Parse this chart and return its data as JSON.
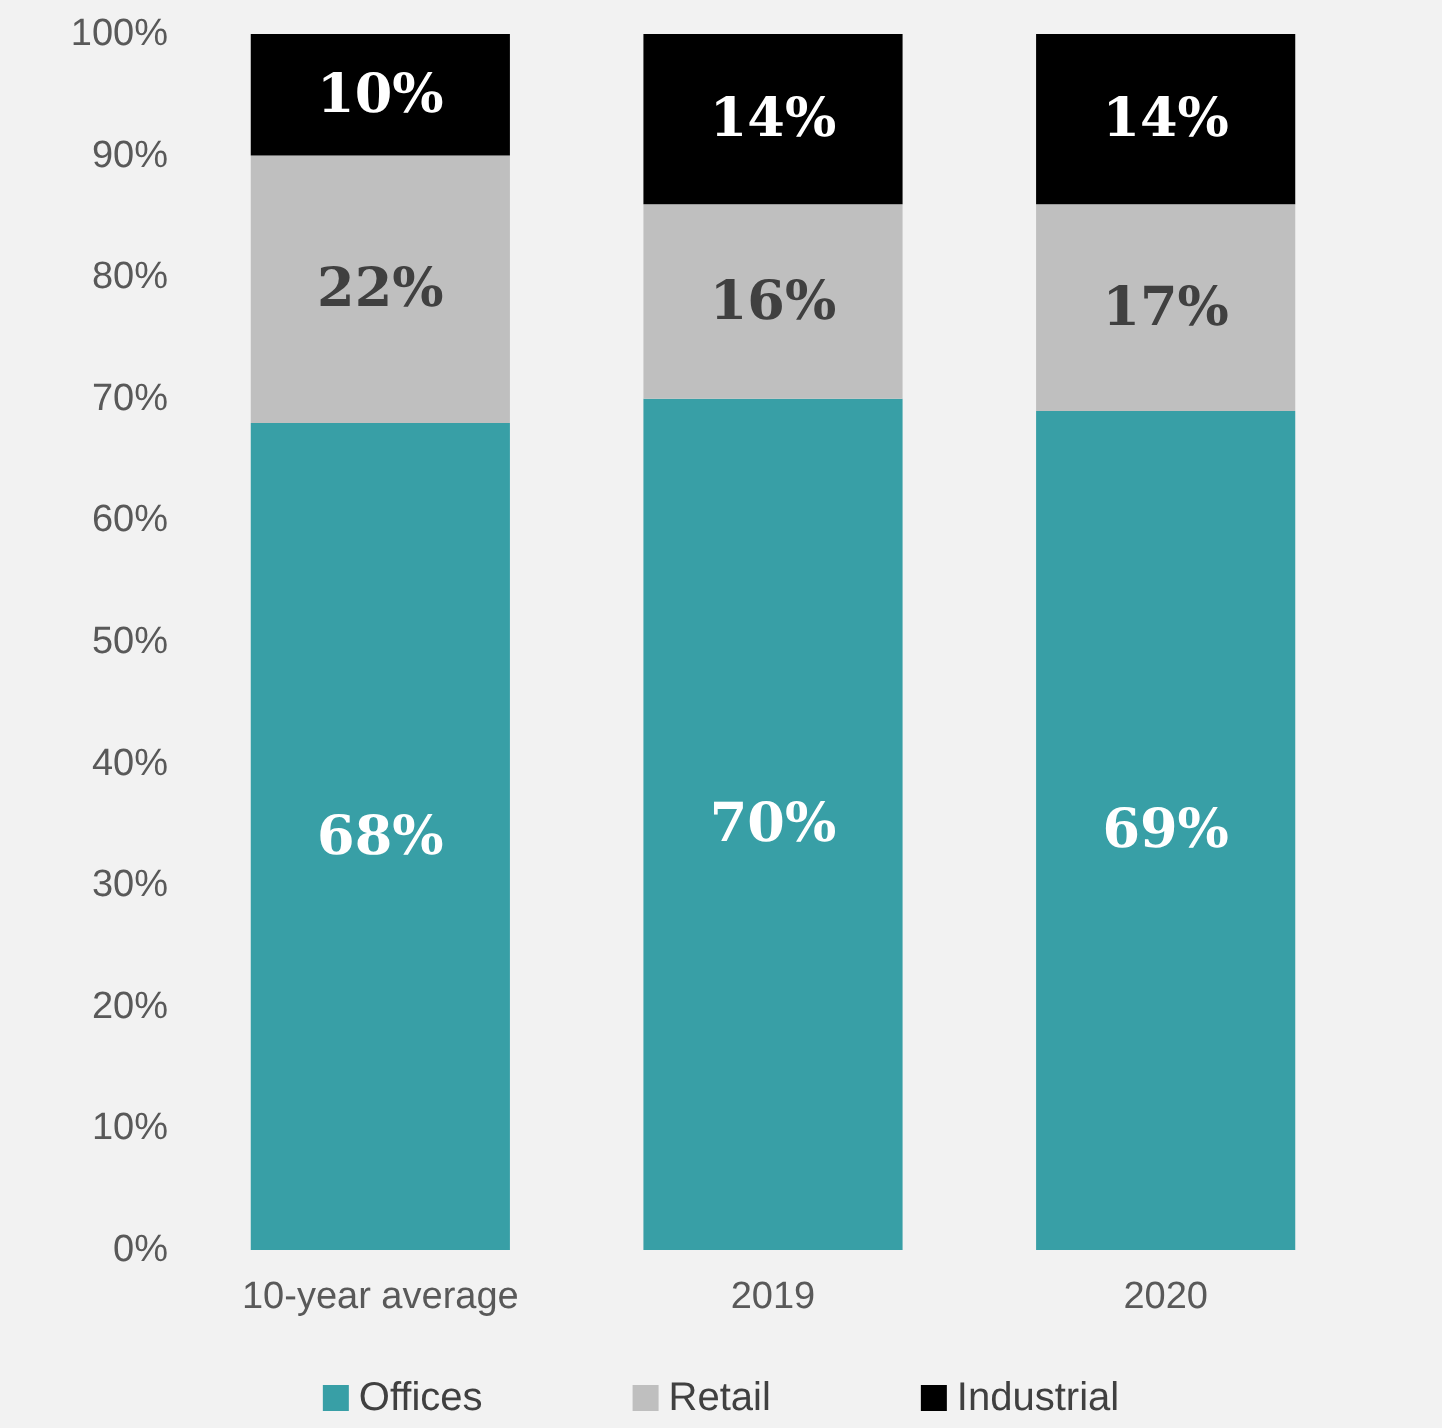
{
  "chart_data": {
    "type": "bar",
    "stacked": true,
    "categories": [
      "10-year average",
      "2019",
      "2020"
    ],
    "series": [
      {
        "name": "Offices",
        "color": "#389fa6",
        "values": [
          68,
          70,
          69
        ],
        "value_labels": [
          "68%",
          "70%",
          "69%"
        ]
      },
      {
        "name": "Retail",
        "color": "#bfbfbf",
        "values": [
          22,
          16,
          17
        ],
        "value_labels": [
          "22%",
          "16%",
          "17%"
        ]
      },
      {
        "name": "Industrial",
        "color": "#000000",
        "values": [
          10,
          14,
          14
        ],
        "value_labels": [
          "10%",
          "14%",
          "14%"
        ]
      }
    ],
    "ylim": [
      0,
      100
    ],
    "yticks": [
      {
        "value": 0,
        "label": "0%"
      },
      {
        "value": 10,
        "label": "10%"
      },
      {
        "value": 20,
        "label": "20%"
      },
      {
        "value": 30,
        "label": "30%"
      },
      {
        "value": 40,
        "label": "40%"
      },
      {
        "value": 50,
        "label": "50%"
      },
      {
        "value": 60,
        "label": "60%"
      },
      {
        "value": 70,
        "label": "70%"
      },
      {
        "value": 80,
        "label": "80%"
      },
      {
        "value": 90,
        "label": "90%"
      },
      {
        "value": 100,
        "label": "100%"
      }
    ],
    "grid": false,
    "legend": "bottom"
  }
}
